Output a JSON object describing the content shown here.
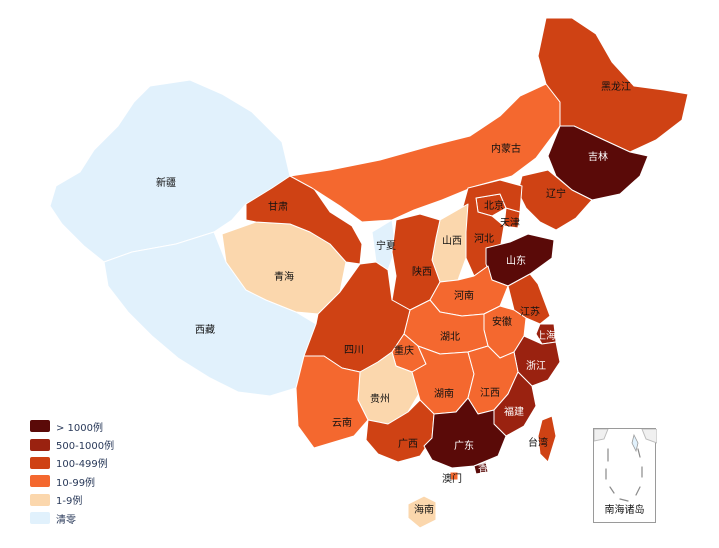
{
  "colors": {
    "clear": "#e1f1fc",
    "c1_9": "#fbd7ad",
    "c10_99": "#f4682f",
    "c100_499": "#cf4214",
    "c500_1000": "#9a2210",
    "c1000": "#5a0a08",
    "border": "#ffffff",
    "outline": "#d0d0d0"
  },
  "legend": [
    {
      "label": "> 1000例",
      "color": "#5a0a08"
    },
    {
      "label": "500-1000例",
      "color": "#9a2210"
    },
    {
      "label": "100-499例",
      "color": "#cf4214"
    },
    {
      "label": "10-99例",
      "color": "#f4682f"
    },
    {
      "label": "1-9例",
      "color": "#fbd7ad"
    },
    {
      "label": "清零",
      "color": "#e1f1fc"
    }
  ],
  "provinces": [
    {
      "name": "新疆",
      "level": "清零"
    },
    {
      "name": "西藏",
      "level": "清零"
    },
    {
      "name": "青海",
      "level": "1-9例"
    },
    {
      "name": "甘肃",
      "level": "100-499例"
    },
    {
      "name": "内蒙古",
      "level": "10-99例"
    },
    {
      "name": "黑龙江",
      "level": "100-499例"
    },
    {
      "name": "吉林",
      "level": "> 1000例"
    },
    {
      "name": "辽宁",
      "level": "100-499例"
    },
    {
      "name": "北京",
      "level": "100-499例"
    },
    {
      "name": "天津",
      "level": "100-499例"
    },
    {
      "name": "河北",
      "level": "100-499例"
    },
    {
      "name": "山西",
      "level": "1-9例"
    },
    {
      "name": "宁夏",
      "level": "清零"
    },
    {
      "name": "陕西",
      "level": "100-499例"
    },
    {
      "name": "山东",
      "level": "> 1000例"
    },
    {
      "name": "河南",
      "level": "10-99例"
    },
    {
      "name": "江苏",
      "level": "100-499例"
    },
    {
      "name": "安徽",
      "level": "10-99例"
    },
    {
      "name": "上海",
      "level": "500-1000例"
    },
    {
      "name": "湖北",
      "level": "10-99例"
    },
    {
      "name": "四川",
      "level": "100-499例"
    },
    {
      "name": "重庆",
      "level": "10-99例"
    },
    {
      "name": "浙江",
      "level": "500-1000例"
    },
    {
      "name": "贵州",
      "level": "1-9例"
    },
    {
      "name": "湖南",
      "level": "10-99例"
    },
    {
      "name": "江西",
      "level": "10-99例"
    },
    {
      "name": "福建",
      "level": "500-1000例"
    },
    {
      "name": "云南",
      "level": "10-99例"
    },
    {
      "name": "广西",
      "level": "100-499例"
    },
    {
      "name": "广东",
      "level": "> 1000例"
    },
    {
      "name": "台湾",
      "level": "100-499例"
    },
    {
      "name": "香港",
      "level": "> 1000例"
    },
    {
      "name": "澳门",
      "level": "10-99例"
    },
    {
      "name": "海南",
      "level": "1-9例"
    }
  ],
  "inset_label": "南海诸岛"
}
